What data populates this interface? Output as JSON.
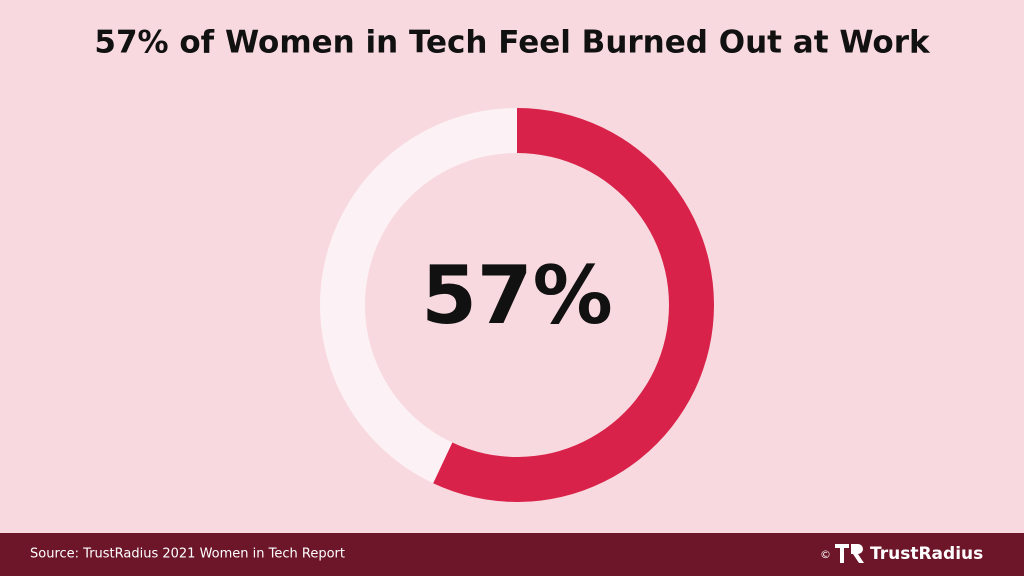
{
  "chart_data": {
    "type": "donut",
    "title": "57% of Women in Tech Feel Burned Out at Work",
    "values": [
      57,
      43
    ],
    "value_labels": [
      "57%",
      null
    ],
    "colors": [
      "#d9224a",
      "#fcf1f4"
    ],
    "source": "Source: TrustRadius 2021 Women in Tech Report",
    "copyright": "©",
    "brand": "TrustRadius"
  }
}
